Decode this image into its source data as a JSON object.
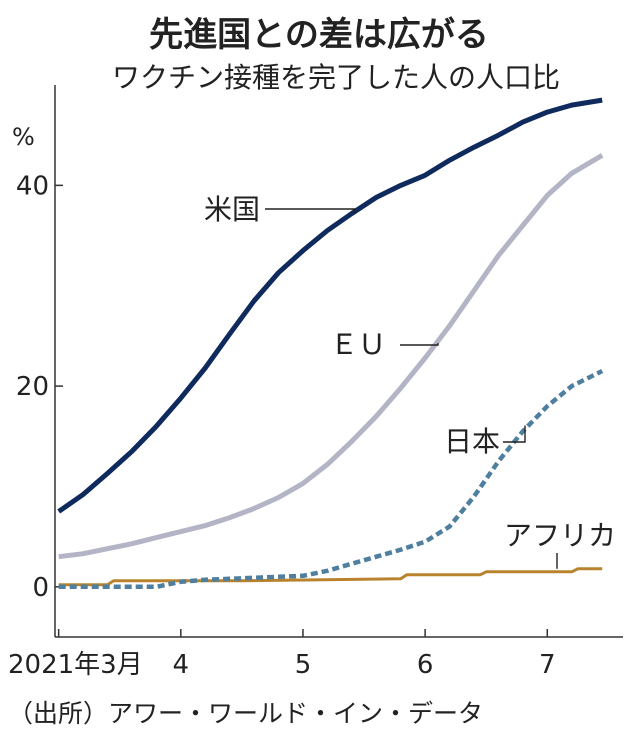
{
  "chart_data": {
    "type": "line",
    "title": "先進国との差は広がる",
    "subtitle": "ワクチン接種を完了した人の人口比",
    "ylabel": "%",
    "ylim": [
      -5,
      50
    ],
    "yticks": [
      0,
      20,
      40
    ],
    "ytick_labels": [
      "0",
      "20",
      "40"
    ],
    "xlim": [
      2.97,
      7.62
    ],
    "xticks": [
      3,
      4,
      5,
      6,
      7
    ],
    "xtick_labels": [
      "2021年3月",
      "4",
      "5",
      "6",
      "7"
    ],
    "x_unit": "month (2021)",
    "source": "（出所）アワー・ワールド・イン・データ",
    "colors": {
      "us": "#0f2a5c",
      "eu": "#b3b5c6",
      "japan": "#4f7f9f",
      "africa": "#b9832e",
      "axis": "#333333"
    },
    "series": [
      {
        "key": "us",
        "name": "米国",
        "style": "solid",
        "x": [
          3.0,
          3.2,
          3.4,
          3.6,
          3.8,
          4.0,
          4.2,
          4.4,
          4.6,
          4.8,
          5.0,
          5.2,
          5.4,
          5.6,
          5.8,
          6.0,
          6.2,
          6.4,
          6.6,
          6.8,
          7.0,
          7.2,
          7.45
        ],
        "values": [
          7.5,
          9.2,
          11.3,
          13.5,
          16.0,
          18.8,
          21.8,
          25.2,
          28.5,
          31.3,
          33.5,
          35.5,
          37.2,
          38.8,
          40.0,
          41.0,
          42.5,
          43.8,
          45.0,
          46.3,
          47.3,
          48.0,
          48.5
        ]
      },
      {
        "key": "eu",
        "name": "ＥＵ",
        "style": "solid",
        "x": [
          3.0,
          3.2,
          3.4,
          3.6,
          3.8,
          4.0,
          4.2,
          4.4,
          4.6,
          4.8,
          5.0,
          5.2,
          5.4,
          5.6,
          5.8,
          6.0,
          6.2,
          6.4,
          6.6,
          6.8,
          7.0,
          7.2,
          7.45
        ],
        "values": [
          3.0,
          3.3,
          3.8,
          4.3,
          4.9,
          5.5,
          6.1,
          6.9,
          7.8,
          8.9,
          10.3,
          12.2,
          14.5,
          17.0,
          19.8,
          22.8,
          26.0,
          29.5,
          33.0,
          36.0,
          39.0,
          41.2,
          43.0
        ]
      },
      {
        "key": "japan",
        "name": "日本",
        "style": "dashed",
        "x": [
          3.0,
          3.2,
          3.4,
          3.6,
          3.8,
          4.0,
          4.2,
          4.4,
          4.6,
          4.8,
          5.0,
          5.2,
          5.4,
          5.6,
          5.8,
          6.0,
          6.2,
          6.4,
          6.6,
          6.8,
          7.0,
          7.2,
          7.45
        ],
        "values": [
          0.0,
          0.0,
          0.0,
          0.0,
          0.0,
          0.5,
          0.7,
          0.8,
          0.9,
          1.0,
          1.1,
          1.6,
          2.3,
          3.0,
          3.7,
          4.5,
          6.0,
          9.0,
          12.5,
          15.5,
          18.0,
          20.0,
          21.5
        ]
      },
      {
        "key": "africa",
        "name": "アフリカ",
        "style": "solid",
        "x": [
          3.0,
          3.4,
          3.45,
          4.4,
          4.5,
          5.8,
          5.85,
          6.45,
          6.5,
          7.2,
          7.25,
          7.45
        ],
        "values": [
          0.2,
          0.2,
          0.6,
          0.6,
          0.6,
          0.8,
          1.2,
          1.2,
          1.5,
          1.5,
          1.8,
          1.8
        ]
      }
    ]
  }
}
